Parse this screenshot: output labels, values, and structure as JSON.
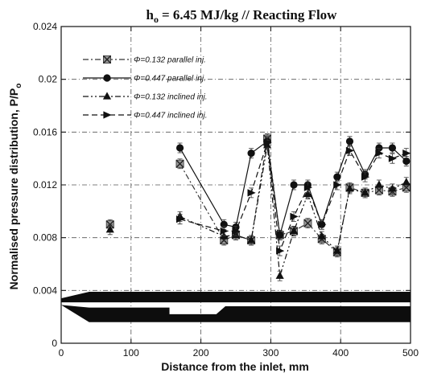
{
  "chart_data": {
    "type": "line",
    "title_main": "h",
    "title_sub": "o",
    "title_rest": "= 6.45 MJ/kg // Reacting Flow",
    "xlabel": "Distance from the inlet, mm",
    "ylabel_main": "Normalised pressure distribution, P/P",
    "ylabel_sub": "o",
    "xlim": [
      0,
      500
    ],
    "ylim": [
      0,
      0.024
    ],
    "xticks": [
      "0",
      "100",
      "200",
      "300",
      "400",
      "500"
    ],
    "yticks": [
      "0",
      "0.004",
      "0.008",
      "0.012",
      "0.016",
      "0.02",
      "0.024"
    ],
    "grid": true,
    "legend_position": "top-left",
    "series": [
      {
        "name": "Φ=0.132 parallel inj.",
        "marker": "x-square",
        "dash": "dash-dot",
        "color": "#333333",
        "x": [
          70,
          170,
          233,
          250,
          272,
          295,
          313,
          333,
          353,
          373,
          395,
          413,
          435,
          455,
          474,
          494
        ],
        "y": [
          0.009,
          0.0136,
          0.0078,
          0.0082,
          0.0078,
          0.0155,
          0.0082,
          0.0085,
          0.0091,
          0.0079,
          0.0069,
          0.0118,
          0.0114,
          0.0116,
          0.0115,
          0.0118
        ]
      },
      {
        "name": "Φ=0.447 parallel inj.",
        "marker": "circle",
        "dash": "solid",
        "color": "#111111",
        "x": [
          170,
          233,
          250,
          272,
          295,
          313,
          333,
          353,
          373,
          395,
          413,
          435,
          455,
          474,
          494
        ],
        "y": [
          0.0148,
          0.009,
          0.0088,
          0.0144,
          0.0153,
          0.0082,
          0.012,
          0.012,
          0.009,
          0.0126,
          0.0153,
          0.0128,
          0.0148,
          0.0148,
          0.0138
        ]
      },
      {
        "name": "Φ=0.132 inclined inj.",
        "marker": "triangle",
        "dash": "dash-dot-dot",
        "color": "#111111",
        "x": [
          70,
          170,
          233,
          250,
          272,
          295,
          313,
          333,
          353,
          373,
          395,
          413,
          435,
          455,
          474,
          494
        ],
        "y": [
          0.0086,
          0.0096,
          0.0081,
          0.0082,
          0.0078,
          0.015,
          0.0051,
          0.0085,
          0.0113,
          0.0081,
          0.007,
          0.0117,
          0.0114,
          0.012,
          0.0117,
          0.0122
        ]
      },
      {
        "name": "Φ=0.447 inclined inj.",
        "marker": "triangle-right",
        "dash": "dash",
        "color": "#111111",
        "x": [
          170,
          233,
          250,
          272,
          295,
          313,
          333,
          353,
          373,
          395,
          413,
          435,
          455,
          474,
          494
        ],
        "y": [
          0.0094,
          0.0085,
          0.0085,
          0.0114,
          0.0152,
          0.007,
          0.0096,
          0.0118,
          0.009,
          0.012,
          0.0146,
          0.0126,
          0.0144,
          0.014,
          0.0144
        ]
      }
    ]
  }
}
